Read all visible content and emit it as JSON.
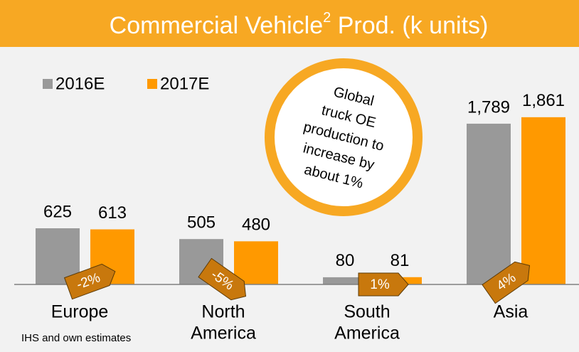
{
  "chart_data": {
    "type": "bar",
    "title": [
      "Commercial Vehicle",
      "2",
      " Prod. (k units)"
    ],
    "categories": [
      [
        "Europe"
      ],
      [
        "North",
        "America"
      ],
      [
        "South",
        "America"
      ],
      [
        "Asia"
      ]
    ],
    "series": [
      {
        "name": "2016E",
        "color": "#999999",
        "values": [
          625,
          505,
          80,
          1789
        ],
        "value_labels": [
          "625",
          "505",
          "80",
          "1,789"
        ]
      },
      {
        "name": "2017E",
        "color": "#ff9900",
        "values": [
          613,
          480,
          81,
          1861
        ],
        "value_labels": [
          "613",
          "480",
          "81",
          "1,861"
        ]
      }
    ],
    "ylim": [
      0,
      2200
    ],
    "change_labels": [
      "-2%",
      "-5%",
      "1%",
      "4%"
    ],
    "callout": [
      "Global",
      "truck OE",
      "production to",
      "increase by",
      "about 1%"
    ],
    "source": "IHS and own estimates"
  }
}
